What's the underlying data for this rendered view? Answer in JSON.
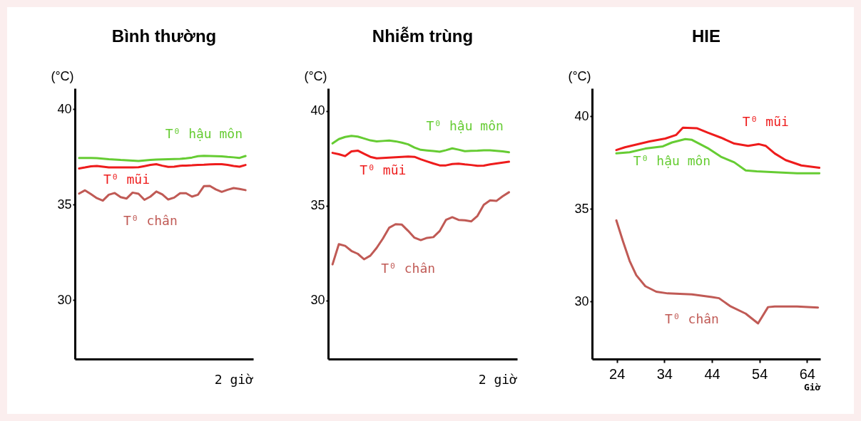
{
  "chart_data": [
    {
      "type": "line",
      "title": "Bình thường",
      "ylabel": "(°C)",
      "annotations": [
        "2 giờ"
      ],
      "categories": [
        null,
        null,
        null,
        null,
        null,
        null,
        null,
        null,
        null,
        null,
        null,
        null,
        null,
        null,
        null,
        null,
        null,
        null,
        null,
        null,
        null,
        null,
        null,
        null,
        null,
        null,
        null,
        null,
        null
      ],
      "ylim": [
        26.9,
        41.1
      ],
      "yticks": [
        30,
        35,
        40
      ],
      "series": [
        {
          "name": "T⁰ hậu môn",
          "color": "#66cc33",
          "values": [
            37.45,
            37.45,
            37.45,
            37.44,
            37.41,
            37.38,
            37.36,
            37.34,
            37.33,
            37.31,
            37.29,
            37.32,
            37.34,
            37.36,
            37.37,
            37.38,
            37.39,
            37.4,
            37.43,
            37.47,
            37.54,
            37.56,
            37.55,
            37.54,
            37.53,
            37.5,
            37.48,
            37.45,
            37.55
          ]
        },
        {
          "name": "T⁰ mũi",
          "color": "#ee1c1c",
          "values": [
            36.9,
            36.95,
            37.01,
            37.03,
            36.99,
            36.95,
            36.95,
            36.95,
            36.95,
            36.95,
            36.96,
            37.02,
            37.08,
            37.12,
            37.04,
            36.98,
            36.99,
            37.04,
            37.05,
            37.06,
            37.08,
            37.09,
            37.11,
            37.12,
            37.12,
            37.08,
            37.03,
            36.99,
            37.08
          ]
        },
        {
          "name": "T⁰ chân",
          "color": "#c05a55",
          "values": [
            35.58,
            35.75,
            35.55,
            35.34,
            35.21,
            35.52,
            35.61,
            35.39,
            35.32,
            35.63,
            35.57,
            35.25,
            35.42,
            35.69,
            35.54,
            35.27,
            35.37,
            35.6,
            35.6,
            35.42,
            35.52,
            35.97,
            35.98,
            35.8,
            35.67,
            35.78,
            35.87,
            35.82,
            35.76
          ]
        }
      ]
    },
    {
      "type": "line",
      "title": "Nhiễm trùng",
      "ylabel": "(°C)",
      "annotations": [
        "2 giờ"
      ],
      "categories": [
        null,
        null,
        null,
        null,
        null,
        null,
        null,
        null,
        null,
        null,
        null,
        null,
        null,
        null,
        null,
        null,
        null,
        null,
        null,
        null,
        null,
        null,
        null,
        null,
        null,
        null,
        null,
        null,
        null
      ],
      "ylim": [
        26.9,
        41.2
      ],
      "yticks": [
        30,
        35,
        40
      ],
      "series": [
        {
          "name": "T⁰ hậu môn",
          "color": "#66cc33",
          "values": [
            38.29,
            38.52,
            38.63,
            38.69,
            38.65,
            38.55,
            38.45,
            38.4,
            38.42,
            38.44,
            38.4,
            38.33,
            38.24,
            38.07,
            37.95,
            37.92,
            37.89,
            37.85,
            37.93,
            38.03,
            37.96,
            37.88,
            37.9,
            37.91,
            37.93,
            37.93,
            37.9,
            37.87,
            37.82
          ]
        },
        {
          "name": "T⁰ mũi",
          "color": "#ee1c1c",
          "values": [
            37.79,
            37.72,
            37.62,
            37.87,
            37.91,
            37.74,
            37.58,
            37.5,
            37.52,
            37.54,
            37.56,
            37.58,
            37.6,
            37.58,
            37.45,
            37.34,
            37.23,
            37.13,
            37.13,
            37.2,
            37.22,
            37.18,
            37.15,
            37.11,
            37.12,
            37.18,
            37.23,
            37.28,
            37.32
          ]
        },
        {
          "name": "T⁰ chân",
          "color": "#c05a55",
          "values": [
            31.9,
            32.97,
            32.88,
            32.61,
            32.46,
            32.17,
            32.36,
            32.77,
            33.27,
            33.84,
            34.02,
            34.0,
            33.67,
            33.31,
            33.18,
            33.3,
            33.34,
            33.66,
            34.25,
            34.39,
            34.25,
            34.23,
            34.17,
            34.46,
            35.05,
            35.28,
            35.25,
            35.5,
            35.71
          ]
        }
      ]
    },
    {
      "type": "line",
      "title": "HIE",
      "ylabel": "(°C)",
      "xlabel": "Giờ",
      "xlim": [
        18.8,
        66.8
      ],
      "xticks": [
        24,
        34,
        44,
        54,
        64
      ],
      "ylim": [
        26.9,
        41.5
      ],
      "yticks": [
        30,
        35,
        40
      ],
      "series": [
        {
          "name": "T⁰ mũi",
          "color": "#ee1c1c",
          "x": [
            23.9,
            25.7,
            30.9,
            34.2,
            36.5,
            37.9,
            40.8,
            43.1,
            45.9,
            48.7,
            51.6,
            53.9,
            55.3,
            57.2,
            59.5,
            62.8,
            66.6
          ],
          "values": [
            38.17,
            38.32,
            38.64,
            38.79,
            38.99,
            39.38,
            39.35,
            39.11,
            38.84,
            38.52,
            38.4,
            38.49,
            38.4,
            37.99,
            37.63,
            37.34,
            37.22
          ]
        },
        {
          "name": "T⁰ hậu môn",
          "color": "#66cc33",
          "x": [
            23.9,
            26.7,
            30.0,
            33.7,
            35.6,
            38.4,
            39.8,
            43.1,
            45.9,
            48.7,
            51.1,
            53.4,
            57.2,
            61.9,
            66.6
          ],
          "values": [
            37.99,
            38.05,
            38.25,
            38.37,
            38.58,
            38.76,
            38.72,
            38.28,
            37.81,
            37.51,
            37.07,
            37.02,
            36.98,
            36.92,
            36.92
          ]
        },
        {
          "name": "T⁰ chân",
          "color": "#c05a55",
          "x": [
            23.9,
            25.3,
            26.7,
            28.1,
            30.0,
            32.3,
            34.7,
            39.8,
            44.0,
            45.5,
            47.8,
            51.1,
            53.7,
            55.8,
            57.2,
            61.9,
            66.3
          ],
          "values": [
            34.38,
            33.25,
            32.19,
            31.42,
            30.83,
            30.53,
            30.44,
            30.39,
            30.24,
            30.18,
            29.76,
            29.35,
            28.82,
            29.7,
            29.73,
            29.73,
            29.68
          ]
        }
      ]
    }
  ]
}
